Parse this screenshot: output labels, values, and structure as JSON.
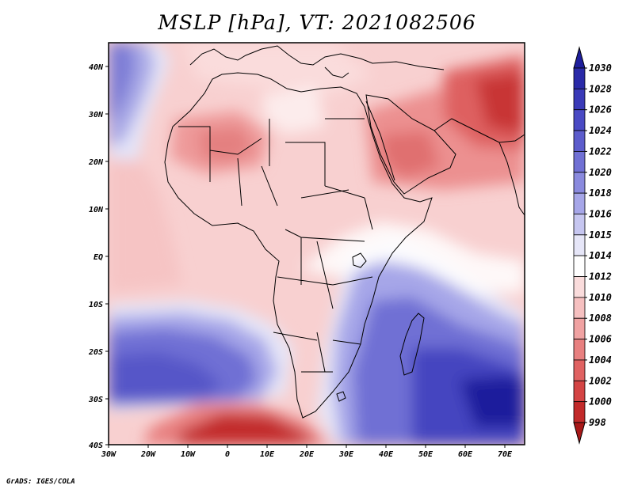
{
  "title": "MSLP [hPa], VT: 2021082506",
  "credit": "GrADS: IGES/COLA",
  "axes": {
    "lon_labels": [
      "30W",
      "20W",
      "10W",
      "0",
      "10E",
      "20E",
      "30E",
      "40E",
      "50E",
      "60E",
      "70E"
    ],
    "lat_labels": [
      "40N",
      "30N",
      "20N",
      "10N",
      "EQ",
      "10S",
      "20S",
      "30S",
      "40S"
    ]
  },
  "colorbar": {
    "labels": [
      "1030",
      "1028",
      "1026",
      "1024",
      "1022",
      "1020",
      "1018",
      "1016",
      "1015",
      "1014",
      "1012",
      "1010",
      "1008",
      "1006",
      "1004",
      "1002",
      "1000",
      "998"
    ],
    "colors": [
      "#1e1e9c",
      "#2a2aa8",
      "#3a3ab8",
      "#4a4ac4",
      "#5c5ccc",
      "#7070d4",
      "#8a8ade",
      "#a6a6e8",
      "#c6c6f0",
      "#e6e6f8",
      "#ffffff",
      "#fadcdc",
      "#f6c0c0",
      "#f0a2a2",
      "#e88080",
      "#e06262",
      "#d44444",
      "#c22a2a",
      "#a81818"
    ]
  },
  "map": {
    "variable": "MSLP",
    "units": "hPa",
    "valid_time": "2021082506"
  }
}
